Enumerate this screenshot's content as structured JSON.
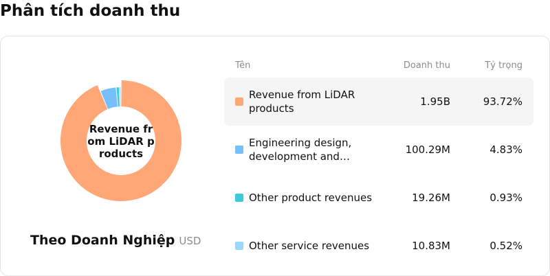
{
  "title": "Phân tích doanh thu",
  "subtitle": "Theo Doanh Nghiệp",
  "unit": "USD",
  "center_label": "Revenue from LiDAR products",
  "table": {
    "headers": {
      "name": "Tên",
      "revenue": "Doanh thu",
      "share": "Tỷ trọng"
    },
    "rows": [
      {
        "name": "Revenue from LiDAR products",
        "revenue": "1.95B",
        "share": "93.72%"
      },
      {
        "name": "Engineering design, development and…",
        "revenue": "100.29M",
        "share": "4.83%"
      },
      {
        "name": "Other product revenues",
        "revenue": "19.26M",
        "share": "0.93%"
      },
      {
        "name": "Other service revenues",
        "revenue": "10.83M",
        "share": "0.52%"
      }
    ]
  },
  "chart_data": {
    "type": "pie",
    "categories": [
      "Revenue from LiDAR products",
      "Engineering design, development and…",
      "Other product revenues",
      "Other service revenues"
    ],
    "values": [
      93.72,
      4.83,
      0.93,
      0.52
    ],
    "colors": [
      "#ffa776",
      "#74c0fc",
      "#3bc9db",
      "#99d8f8"
    ],
    "selected": 0
  }
}
